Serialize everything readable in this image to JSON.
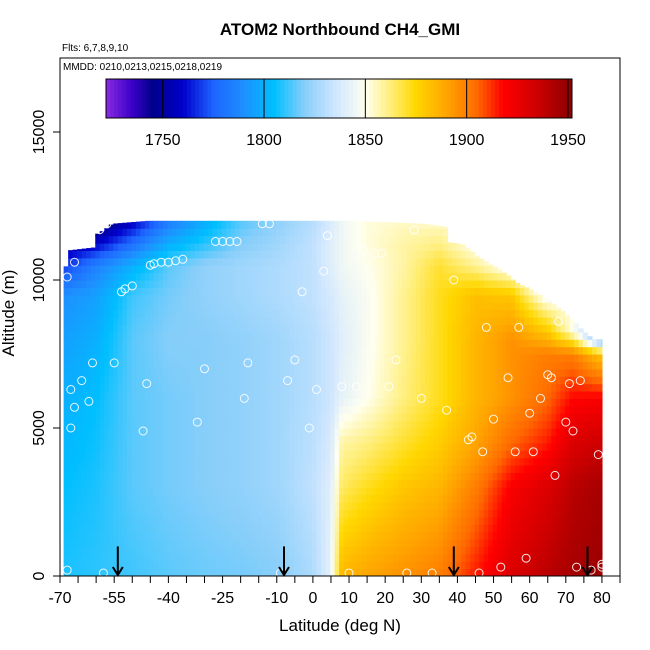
{
  "chart_data": {
    "type": "heatmap",
    "title": "ATOM2 Northbound CH4_GMI",
    "flights_note": "Flts: 6,7,8,9,10",
    "dates_note": "MMDD: 0210,0213,0215,0218,0219",
    "xlabel": "Latitude (deg N)",
    "ylabel": "Altitude (m)",
    "xlim": [
      -70,
      85
    ],
    "ylim": [
      0,
      17500
    ],
    "x_ticks": [
      "-70",
      "-55",
      "-40",
      "-25",
      "-10",
      "0",
      "10",
      "20",
      "30",
      "40",
      "50",
      "60",
      "70",
      "80"
    ],
    "x_tick_values": [
      -70,
      -55,
      -40,
      -25,
      -10,
      0,
      10,
      20,
      30,
      40,
      50,
      60,
      70,
      80
    ],
    "x_minor_ticks": [
      -65,
      -60,
      -50,
      -45,
      -35,
      -30,
      -20,
      -15,
      -5,
      5,
      15,
      25,
      35,
      45,
      55,
      65,
      75,
      85
    ],
    "y_ticks": [
      "0",
      "5000",
      "10000",
      "15000"
    ],
    "y_tick_values": [
      0,
      5000,
      10000,
      15000
    ],
    "colorbar": {
      "range": [
        1722,
        1952
      ],
      "ticks": [
        "1750",
        "1800",
        "1850",
        "1900",
        "1950"
      ],
      "tick_values": [
        1750,
        1800,
        1850,
        1900,
        1950
      ],
      "colors": [
        [
          1722,
          "#8a2be2"
        ],
        [
          1735,
          "#3a00c8"
        ],
        [
          1745,
          "#00008b"
        ],
        [
          1760,
          "#0000cd"
        ],
        [
          1775,
          "#1e64ff"
        ],
        [
          1790,
          "#1e90ff"
        ],
        [
          1805,
          "#00bfff"
        ],
        [
          1820,
          "#87cefa"
        ],
        [
          1835,
          "#cfe6ff"
        ],
        [
          1850,
          "#fffff0"
        ],
        [
          1862,
          "#ffef80"
        ],
        [
          1875,
          "#ffd700"
        ],
        [
          1890,
          "#ffa500"
        ],
        [
          1905,
          "#ff6a00"
        ],
        [
          1918,
          "#ff0000"
        ],
        [
          1935,
          "#cc0000"
        ],
        [
          1952,
          "#8b0000"
        ]
      ]
    },
    "ceiling_profile": [
      [
        -69,
        9000
      ],
      [
        -69,
        10400
      ],
      [
        -67,
        10500
      ],
      [
        -67,
        11000
      ],
      [
        -60,
        11100
      ],
      [
        -60,
        11500
      ],
      [
        -57,
        11700
      ],
      [
        -55,
        11900
      ],
      [
        -45,
        12000
      ],
      [
        -30,
        12000
      ],
      [
        -10,
        12000
      ],
      [
        10,
        12000
      ],
      [
        30,
        11900
      ],
      [
        36,
        11800
      ],
      [
        36,
        11300
      ],
      [
        41,
        11200
      ],
      [
        45,
        10800
      ],
      [
        49,
        10500
      ],
      [
        52,
        10300
      ],
      [
        56,
        9900
      ],
      [
        61,
        9600
      ],
      [
        66,
        9200
      ],
      [
        71,
        8700
      ],
      [
        74,
        8300
      ],
      [
        77,
        8000
      ],
      [
        80,
        8000
      ],
      [
        80,
        0
      ],
      [
        -69,
        0
      ]
    ],
    "field_anchors": [
      {
        "lat": -69,
        "ch4": [
          [
            0,
            1808
          ],
          [
            3000,
            1805
          ],
          [
            6000,
            1800
          ],
          [
            8000,
            1795
          ],
          [
            9500,
            1790
          ],
          [
            10400,
            1770
          ],
          [
            11000,
            1755
          ],
          [
            11900,
            1740
          ]
        ]
      },
      {
        "lat": -60,
        "ch4": [
          [
            0,
            1810
          ],
          [
            3000,
            1808
          ],
          [
            6000,
            1805
          ],
          [
            8000,
            1800
          ],
          [
            9500,
            1795
          ],
          [
            10500,
            1785
          ],
          [
            11200,
            1760
          ],
          [
            11900,
            1740
          ]
        ]
      },
      {
        "lat": -50,
        "ch4": [
          [
            0,
            1812
          ],
          [
            3000,
            1815
          ],
          [
            6000,
            1815
          ],
          [
            8000,
            1815
          ],
          [
            9500,
            1812
          ],
          [
            10500,
            1800
          ],
          [
            11200,
            1780
          ],
          [
            11900,
            1760
          ]
        ]
      },
      {
        "lat": -40,
        "ch4": [
          [
            0,
            1815
          ],
          [
            3000,
            1818
          ],
          [
            6000,
            1818
          ],
          [
            8000,
            1820
          ],
          [
            9500,
            1818
          ],
          [
            10500,
            1815
          ],
          [
            11200,
            1800
          ],
          [
            11900,
            1785
          ]
        ]
      },
      {
        "lat": -30,
        "ch4": [
          [
            0,
            1817
          ],
          [
            3000,
            1820
          ],
          [
            6000,
            1820
          ],
          [
            8000,
            1820
          ],
          [
            9500,
            1822
          ],
          [
            10500,
            1822
          ],
          [
            11200,
            1810
          ],
          [
            11900,
            1800
          ]
        ]
      },
      {
        "lat": -20,
        "ch4": [
          [
            0,
            1818
          ],
          [
            3000,
            1822
          ],
          [
            6000,
            1822
          ],
          [
            8000,
            1822
          ],
          [
            9500,
            1825
          ],
          [
            10500,
            1825
          ],
          [
            11200,
            1820
          ],
          [
            11900,
            1815
          ]
        ]
      },
      {
        "lat": -10,
        "ch4": [
          [
            0,
            1820
          ],
          [
            3000,
            1825
          ],
          [
            6000,
            1825
          ],
          [
            8000,
            1825
          ],
          [
            9500,
            1828
          ],
          [
            10500,
            1828
          ],
          [
            11200,
            1825
          ],
          [
            11900,
            1822
          ]
        ]
      },
      {
        "lat": 0,
        "ch4": [
          [
            0,
            1828
          ],
          [
            3000,
            1832
          ],
          [
            6000,
            1830
          ],
          [
            8000,
            1830
          ],
          [
            9500,
            1832
          ],
          [
            10500,
            1832
          ],
          [
            11200,
            1832
          ],
          [
            11900,
            1830
          ]
        ]
      },
      {
        "lat": 5,
        "ch4": [
          [
            0,
            1842
          ],
          [
            3000,
            1840
          ],
          [
            6000,
            1835
          ],
          [
            8000,
            1835
          ],
          [
            9500,
            1837
          ],
          [
            10500,
            1840
          ],
          [
            11200,
            1840
          ],
          [
            11900,
            1838
          ]
        ]
      },
      {
        "lat": 8,
        "ch4": [
          [
            0,
            1885
          ],
          [
            3000,
            1865
          ],
          [
            4500,
            1858
          ],
          [
            6000,
            1842
          ],
          [
            8000,
            1840
          ],
          [
            9500,
            1842
          ],
          [
            10500,
            1845
          ],
          [
            11200,
            1845
          ],
          [
            11900,
            1845
          ]
        ]
      },
      {
        "lat": 15,
        "ch4": [
          [
            0,
            1890
          ],
          [
            3000,
            1872
          ],
          [
            4500,
            1862
          ],
          [
            6000,
            1850
          ],
          [
            8000,
            1848
          ],
          [
            9500,
            1848
          ],
          [
            10500,
            1850
          ],
          [
            11200,
            1852
          ],
          [
            11900,
            1852
          ]
        ]
      },
      {
        "lat": 25,
        "ch4": [
          [
            0,
            1895
          ],
          [
            3000,
            1880
          ],
          [
            4500,
            1870
          ],
          [
            6000,
            1862
          ],
          [
            8000,
            1860
          ],
          [
            9500,
            1860
          ],
          [
            10500,
            1858
          ],
          [
            11200,
            1858
          ],
          [
            11900,
            1855
          ]
        ]
      },
      {
        "lat": 35,
        "ch4": [
          [
            0,
            1900
          ],
          [
            3000,
            1885
          ],
          [
            4500,
            1878
          ],
          [
            6000,
            1872
          ],
          [
            8000,
            1872
          ],
          [
            9500,
            1872
          ],
          [
            10500,
            1870
          ],
          [
            11200,
            1862
          ],
          [
            11900,
            1855
          ]
        ]
      },
      {
        "lat": 45,
        "ch4": [
          [
            0,
            1915
          ],
          [
            3000,
            1900
          ],
          [
            4500,
            1890
          ],
          [
            6000,
            1885
          ],
          [
            8000,
            1885
          ],
          [
            9500,
            1882
          ],
          [
            10500,
            1860
          ],
          [
            11200,
            1850
          ]
        ]
      },
      {
        "lat": 55,
        "ch4": [
          [
            0,
            1930
          ],
          [
            3000,
            1920
          ],
          [
            4500,
            1905
          ],
          [
            6000,
            1895
          ],
          [
            8000,
            1895
          ],
          [
            9500,
            1880
          ],
          [
            10500,
            1845
          ]
        ]
      },
      {
        "lat": 65,
        "ch4": [
          [
            0,
            1940
          ],
          [
            3000,
            1930
          ],
          [
            4500,
            1915
          ],
          [
            6000,
            1905
          ],
          [
            7500,
            1900
          ],
          [
            9000,
            1860
          ],
          [
            9600,
            1840
          ]
        ]
      },
      {
        "lat": 72,
        "ch4": [
          [
            0,
            1945
          ],
          [
            3000,
            1940
          ],
          [
            4500,
            1930
          ],
          [
            6000,
            1918
          ],
          [
            7500,
            1900
          ],
          [
            8300,
            1850
          ]
        ]
      },
      {
        "lat": 80,
        "ch4": [
          [
            0,
            1948
          ],
          [
            3000,
            1945
          ],
          [
            4500,
            1935
          ],
          [
            6000,
            1920
          ],
          [
            7500,
            1880
          ],
          [
            8000,
            1810
          ]
        ]
      }
    ],
    "observations": [
      [
        -68,
        200
      ],
      [
        -67,
        6300
      ],
      [
        -67,
        5000
      ],
      [
        -68,
        10100
      ],
      [
        -66,
        10600
      ],
      [
        -66,
        5700
      ],
      [
        -64,
        6600
      ],
      [
        -62,
        5900
      ],
      [
        -61,
        7200
      ],
      [
        -59,
        11700
      ],
      [
        -57,
        11900
      ],
      [
        -58,
        100
      ],
      [
        -55,
        7200
      ],
      [
        -53,
        9600
      ],
      [
        -52,
        9700
      ],
      [
        -50,
        9800
      ],
      [
        -47,
        4900
      ],
      [
        -46,
        6500
      ],
      [
        -45,
        10500
      ],
      [
        -44,
        10550
      ],
      [
        -42,
        10600
      ],
      [
        -40,
        10600
      ],
      [
        -38,
        10650
      ],
      [
        -36,
        10700
      ],
      [
        -32,
        5200
      ],
      [
        -30,
        7000
      ],
      [
        -27,
        11300
      ],
      [
        -25,
        11300
      ],
      [
        -23,
        11300
      ],
      [
        -21,
        11300
      ],
      [
        -19,
        6000
      ],
      [
        -18,
        7200
      ],
      [
        -14,
        11900
      ],
      [
        -12,
        11900
      ],
      [
        -7,
        6600
      ],
      [
        -5,
        7300
      ],
      [
        -3,
        9600
      ],
      [
        -1,
        5000
      ],
      [
        1,
        6300
      ],
      [
        3,
        10300
      ],
      [
        4,
        11500
      ],
      [
        -9,
        100
      ],
      [
        8,
        6400
      ],
      [
        10,
        100
      ],
      [
        12,
        6400
      ],
      [
        14,
        11000
      ],
      [
        17,
        10900
      ],
      [
        19,
        10900
      ],
      [
        21,
        6400
      ],
      [
        23,
        7300
      ],
      [
        26,
        100
      ],
      [
        28,
        11700
      ],
      [
        30,
        6000
      ],
      [
        33,
        100
      ],
      [
        37,
        5600
      ],
      [
        39,
        10000
      ],
      [
        43,
        4600
      ],
      [
        44,
        4700
      ],
      [
        46,
        100
      ],
      [
        47,
        4200
      ],
      [
        48,
        8400
      ],
      [
        50,
        5300
      ],
      [
        52,
        300
      ],
      [
        54,
        6700
      ],
      [
        56,
        4200
      ],
      [
        57,
        8400
      ],
      [
        59,
        600
      ],
      [
        60,
        5500
      ],
      [
        61,
        4200
      ],
      [
        63,
        6000
      ],
      [
        65,
        6800
      ],
      [
        66,
        6700
      ],
      [
        67,
        3400
      ],
      [
        68,
        8600
      ],
      [
        70,
        5200
      ],
      [
        71,
        6500
      ],
      [
        72,
        4900
      ],
      [
        73,
        300
      ],
      [
        74,
        6600
      ],
      [
        76,
        9000
      ],
      [
        77,
        200
      ],
      [
        78,
        8600
      ],
      [
        79,
        4100
      ],
      [
        80,
        300
      ],
      [
        80,
        400
      ]
    ],
    "arrows_lat": [
      -54,
      -8,
      39,
      76
    ]
  }
}
